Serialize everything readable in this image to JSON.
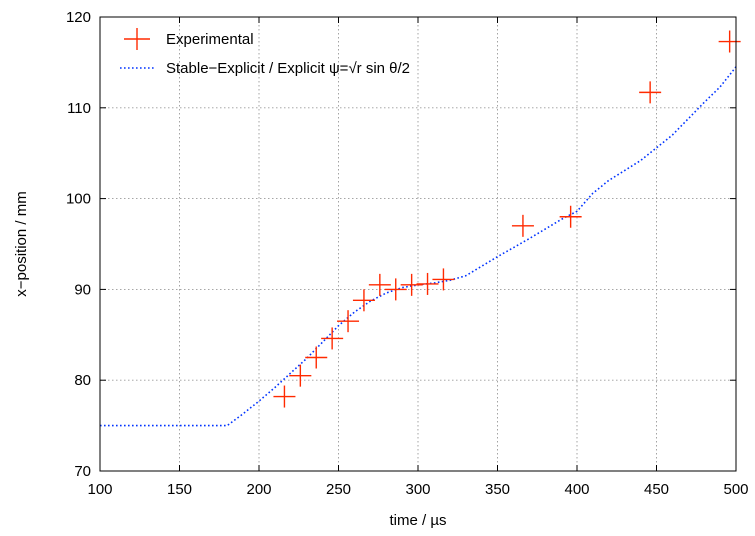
{
  "chart_data": {
    "type": "scatter",
    "title": "",
    "xlabel": "time / µs",
    "ylabel": "x−position / mm",
    "xlim": [
      100,
      500
    ],
    "ylim": [
      70,
      120
    ],
    "xticks": [
      100,
      150,
      200,
      250,
      300,
      350,
      400,
      450,
      500
    ],
    "yticks": [
      70,
      80,
      90,
      100,
      110,
      120
    ],
    "xtick_labels": [
      "100",
      "150",
      "200",
      "250",
      "300",
      "350",
      "400",
      "450",
      "500"
    ],
    "ytick_labels": [
      "70",
      "80",
      "90",
      "100",
      "110",
      "120"
    ],
    "grid": true,
    "legend_position": "top-left",
    "series": [
      {
        "name": "Experimental",
        "kind": "points",
        "marker": "plus",
        "color": "#ff2a00",
        "x": [
          216,
          226,
          236,
          246,
          256,
          266,
          276,
          286,
          296,
          306,
          316,
          366,
          396,
          446,
          496
        ],
        "y": [
          78.2,
          80.5,
          82.5,
          84.6,
          86.5,
          88.8,
          90.5,
          90.0,
          90.5,
          90.6,
          91.1,
          97.0,
          98.0,
          111.7,
          117.3
        ]
      },
      {
        "name": "Stable−Explicit / Explicit ψ=√r sin θ/2",
        "kind": "line",
        "style": "dotted",
        "color": "#0033ff",
        "x": [
          100,
          150,
          180,
          190,
          200,
          210,
          220,
          230,
          240,
          250,
          260,
          270,
          280,
          290,
          300,
          310,
          320,
          330,
          350,
          370,
          390,
          400,
          410,
          420,
          440,
          460,
          480,
          490,
          500
        ],
        "y": [
          75.0,
          75.0,
          75.0,
          76.3,
          77.7,
          79.2,
          80.8,
          82.4,
          84.2,
          86.0,
          87.5,
          88.7,
          89.6,
          90.2,
          90.5,
          90.7,
          91.0,
          91.5,
          93.6,
          95.6,
          97.7,
          98.6,
          100.6,
          102.0,
          104.2,
          107.0,
          110.6,
          112.3,
          114.5
        ]
      }
    ]
  }
}
